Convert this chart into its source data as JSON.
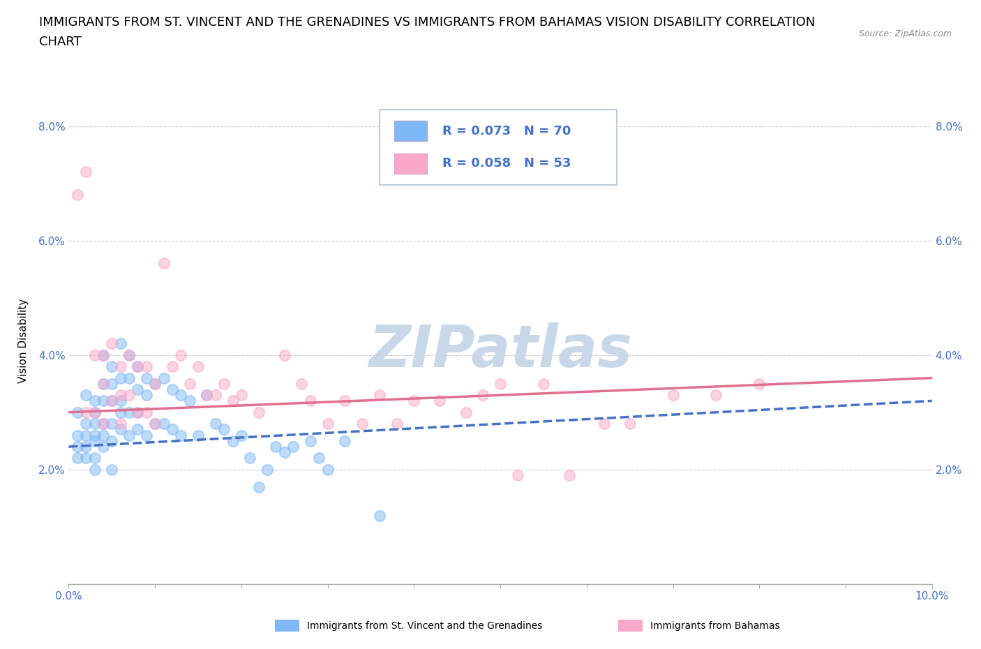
{
  "title_line1": "IMMIGRANTS FROM ST. VINCENT AND THE GRENADINES VS IMMIGRANTS FROM BAHAMAS VISION DISABILITY CORRELATION",
  "title_line2": "CHART",
  "source": "Source: ZipAtlas.com",
  "ylabel": "Vision Disability",
  "xlim": [
    0.0,
    0.1
  ],
  "ylim": [
    0.0,
    0.085
  ],
  "xticks": [
    0.0,
    0.01,
    0.02,
    0.03,
    0.04,
    0.05,
    0.06,
    0.07,
    0.08,
    0.09,
    0.1
  ],
  "yticks": [
    0.0,
    0.02,
    0.04,
    0.06,
    0.08
  ],
  "ytick_labels": [
    "",
    "2.0%",
    "4.0%",
    "6.0%",
    "8.0%"
  ],
  "xtick_labels": [
    "0.0%",
    "",
    "",
    "",
    "",
    "",
    "",
    "",
    "",
    "",
    "10.0%"
  ],
  "blue_R": 0.073,
  "blue_N": 70,
  "pink_R": 0.058,
  "pink_N": 53,
  "blue_color": "#7EB8F7",
  "pink_color": "#F9A8C9",
  "blue_line_color": "#4472C4",
  "pink_line_color": "#E07090",
  "watermark": "ZIPatlas",
  "blue_scatter_x": [
    0.001,
    0.001,
    0.001,
    0.001,
    0.002,
    0.002,
    0.002,
    0.002,
    0.002,
    0.003,
    0.003,
    0.003,
    0.003,
    0.003,
    0.003,
    0.003,
    0.004,
    0.004,
    0.004,
    0.004,
    0.004,
    0.004,
    0.005,
    0.005,
    0.005,
    0.005,
    0.005,
    0.005,
    0.006,
    0.006,
    0.006,
    0.006,
    0.006,
    0.007,
    0.007,
    0.007,
    0.007,
    0.008,
    0.008,
    0.008,
    0.008,
    0.009,
    0.009,
    0.009,
    0.01,
    0.01,
    0.011,
    0.011,
    0.012,
    0.012,
    0.013,
    0.013,
    0.014,
    0.015,
    0.016,
    0.017,
    0.018,
    0.019,
    0.02,
    0.021,
    0.022,
    0.023,
    0.024,
    0.025,
    0.026,
    0.028,
    0.029,
    0.03,
    0.032,
    0.036
  ],
  "blue_scatter_y": [
    0.03,
    0.026,
    0.024,
    0.022,
    0.033,
    0.028,
    0.026,
    0.024,
    0.022,
    0.032,
    0.03,
    0.028,
    0.026,
    0.025,
    0.022,
    0.02,
    0.04,
    0.035,
    0.032,
    0.028,
    0.026,
    0.024,
    0.038,
    0.035,
    0.032,
    0.028,
    0.025,
    0.02,
    0.042,
    0.036,
    0.032,
    0.03,
    0.027,
    0.04,
    0.036,
    0.03,
    0.026,
    0.038,
    0.034,
    0.03,
    0.027,
    0.036,
    0.033,
    0.026,
    0.035,
    0.028,
    0.036,
    0.028,
    0.034,
    0.027,
    0.033,
    0.026,
    0.032,
    0.026,
    0.033,
    0.028,
    0.027,
    0.025,
    0.026,
    0.022,
    0.017,
    0.02,
    0.024,
    0.023,
    0.024,
    0.025,
    0.022,
    0.02,
    0.025,
    0.012
  ],
  "pink_scatter_x": [
    0.001,
    0.002,
    0.002,
    0.003,
    0.003,
    0.004,
    0.004,
    0.004,
    0.005,
    0.005,
    0.006,
    0.006,
    0.006,
    0.007,
    0.007,
    0.008,
    0.008,
    0.009,
    0.009,
    0.01,
    0.01,
    0.011,
    0.012,
    0.013,
    0.014,
    0.015,
    0.016,
    0.017,
    0.018,
    0.019,
    0.02,
    0.022,
    0.025,
    0.027,
    0.028,
    0.03,
    0.032,
    0.034,
    0.036,
    0.038,
    0.04,
    0.043,
    0.046,
    0.048,
    0.05,
    0.052,
    0.055,
    0.058,
    0.062,
    0.065,
    0.07,
    0.075,
    0.08
  ],
  "pink_scatter_y": [
    0.068,
    0.072,
    0.03,
    0.04,
    0.03,
    0.04,
    0.035,
    0.028,
    0.042,
    0.032,
    0.038,
    0.033,
    0.028,
    0.04,
    0.033,
    0.038,
    0.03,
    0.038,
    0.03,
    0.035,
    0.028,
    0.056,
    0.038,
    0.04,
    0.035,
    0.038,
    0.033,
    0.033,
    0.035,
    0.032,
    0.033,
    0.03,
    0.04,
    0.035,
    0.032,
    0.028,
    0.032,
    0.028,
    0.033,
    0.028,
    0.032,
    0.032,
    0.03,
    0.033,
    0.035,
    0.019,
    0.035,
    0.019,
    0.028,
    0.028,
    0.033,
    0.033,
    0.035
  ],
  "blue_trend_x": [
    0.0,
    0.1
  ],
  "blue_trend_y": [
    0.024,
    0.032
  ],
  "pink_trend_x": [
    0.0,
    0.1
  ],
  "pink_trend_y": [
    0.03,
    0.036
  ],
  "background_color": "#FFFFFF",
  "grid_color": "#CCCCCC",
  "watermark_color": "#C8D8E8",
  "title_fontsize": 13,
  "axis_label_fontsize": 11,
  "tick_fontsize": 11,
  "legend_fontsize": 13,
  "scatter_size": 120,
  "scatter_alpha": 0.5,
  "trend_linewidth": 2.5
}
